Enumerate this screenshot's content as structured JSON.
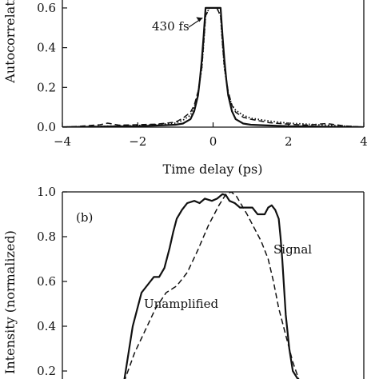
{
  "chart_data": [
    {
      "type": "line",
      "xlabel": "Time delay (ps)",
      "ylabel": "Autocorrelation",
      "xlim": [
        -4,
        4
      ],
      "ylim": [
        0,
        0.6
      ],
      "x_ticks": [
        -4,
        -2,
        0,
        2,
        4
      ],
      "x_tick_labels": [
        "−4",
        "−2",
        "0",
        "2",
        "4"
      ],
      "y_ticks": [
        0.0,
        0.2,
        0.4,
        0.6
      ],
      "y_tick_labels": [
        "0.0",
        "0.2",
        "0.4",
        "0.6"
      ],
      "annotations": [
        {
          "text": "430 fs",
          "arrow_to": [
            -0.28,
            0.55
          ]
        }
      ],
      "series": [
        {
          "style": "solid",
          "x": [
            -4.0,
            -3.0,
            -2.0,
            -1.5,
            -1.0,
            -0.8,
            -0.6,
            -0.5,
            -0.4,
            -0.35,
            -0.3,
            -0.25,
            -0.2,
            -0.15,
            -0.1,
            0.0,
            0.1,
            0.15,
            0.2,
            0.25,
            0.3,
            0.35,
            0.4,
            0.5,
            0.6,
            0.8,
            1.0,
            1.5,
            2.0,
            3.0,
            4.0
          ],
          "y": [
            0.0,
            0.003,
            0.005,
            0.008,
            0.012,
            0.018,
            0.04,
            0.08,
            0.16,
            0.24,
            0.34,
            0.46,
            0.6,
            0.6,
            0.6,
            0.6,
            0.6,
            0.6,
            0.6,
            0.46,
            0.34,
            0.24,
            0.16,
            0.08,
            0.04,
            0.018,
            0.012,
            0.008,
            0.005,
            0.003,
            0.0
          ]
        },
        {
          "style": "dashed",
          "x": [
            -4.0,
            -3.5,
            -3.0,
            -2.8,
            -2.5,
            -2.0,
            -1.5,
            -1.0,
            -0.8,
            -0.6,
            -0.5,
            -0.4,
            -0.3,
            -0.25,
            -0.2,
            -0.1,
            0.0,
            0.1,
            0.2,
            0.25,
            0.3,
            0.4,
            0.5,
            0.6,
            0.8,
            1.0,
            1.5,
            2.0,
            2.5,
            3.0,
            3.5,
            4.0
          ],
          "y": [
            0.0,
            0.005,
            0.012,
            0.02,
            0.01,
            0.012,
            0.015,
            0.025,
            0.045,
            0.075,
            0.11,
            0.18,
            0.3,
            0.42,
            0.56,
            0.6,
            0.6,
            0.6,
            0.56,
            0.42,
            0.3,
            0.18,
            0.11,
            0.075,
            0.05,
            0.04,
            0.022,
            0.015,
            0.01,
            0.018,
            0.006,
            0.0
          ]
        },
        {
          "style": "dotted",
          "x": [
            -4.0,
            -3.0,
            -2.0,
            -1.5,
            -1.0,
            -0.8,
            -0.6,
            -0.5,
            -0.4,
            -0.3,
            -0.25,
            -0.2,
            -0.1,
            0.0,
            0.1,
            0.2,
            0.25,
            0.3,
            0.4,
            0.5,
            0.6,
            0.8,
            1.0,
            1.5,
            2.0,
            2.5,
            3.0,
            4.0
          ],
          "y": [
            0.0,
            0.004,
            0.008,
            0.012,
            0.02,
            0.035,
            0.06,
            0.1,
            0.17,
            0.3,
            0.42,
            0.56,
            0.6,
            0.6,
            0.6,
            0.56,
            0.42,
            0.3,
            0.17,
            0.11,
            0.085,
            0.06,
            0.045,
            0.03,
            0.02,
            0.015,
            0.01,
            0.0
          ]
        }
      ]
    },
    {
      "type": "line",
      "panel_label": "(b)",
      "ylabel": "Intensity (normalized)",
      "ylim": [
        0.2,
        1.0
      ],
      "y_ticks": [
        0.2,
        0.4,
        0.6,
        0.8,
        1.0
      ],
      "y_tick_labels": [
        "0.2",
        "0.4",
        "0.6",
        "0.8",
        "1.0"
      ],
      "annotations": [
        {
          "text": "Signal"
        },
        {
          "text": "Unamplified"
        }
      ],
      "series": [
        {
          "name": "Signal",
          "style": "solid",
          "x": [
            0,
            5,
            10,
            15,
            17,
            20,
            23,
            26,
            28,
            30,
            33,
            36,
            40,
            43,
            46,
            50,
            53,
            56,
            58,
            60,
            63,
            66,
            70,
            73,
            76,
            80,
            82,
            84,
            86,
            88,
            89,
            90,
            92,
            94,
            96,
            100
          ],
          "y": [
            0.15,
            0.4,
            0.55,
            0.6,
            0.62,
            0.62,
            0.66,
            0.75,
            0.82,
            0.88,
            0.92,
            0.95,
            0.96,
            0.95,
            0.97,
            0.96,
            0.97,
            0.99,
            0.985,
            0.96,
            0.95,
            0.93,
            0.93,
            0.93,
            0.9,
            0.9,
            0.93,
            0.94,
            0.92,
            0.88,
            0.8,
            0.7,
            0.45,
            0.3,
            0.2,
            0.15
          ]
        },
        {
          "name": "Unamplified",
          "style": "dashed",
          "x": [
            0,
            6,
            12,
            18,
            24,
            30,
            36,
            42,
            48,
            54,
            58,
            61,
            64,
            67,
            70,
            74,
            78,
            82,
            85,
            88,
            92,
            96,
            100
          ],
          "y": [
            0.15,
            0.28,
            0.38,
            0.48,
            0.55,
            0.58,
            0.64,
            0.74,
            0.85,
            0.94,
            0.99,
            1.0,
            0.98,
            0.94,
            0.9,
            0.84,
            0.78,
            0.7,
            0.6,
            0.48,
            0.36,
            0.24,
            0.15
          ]
        }
      ]
    }
  ]
}
